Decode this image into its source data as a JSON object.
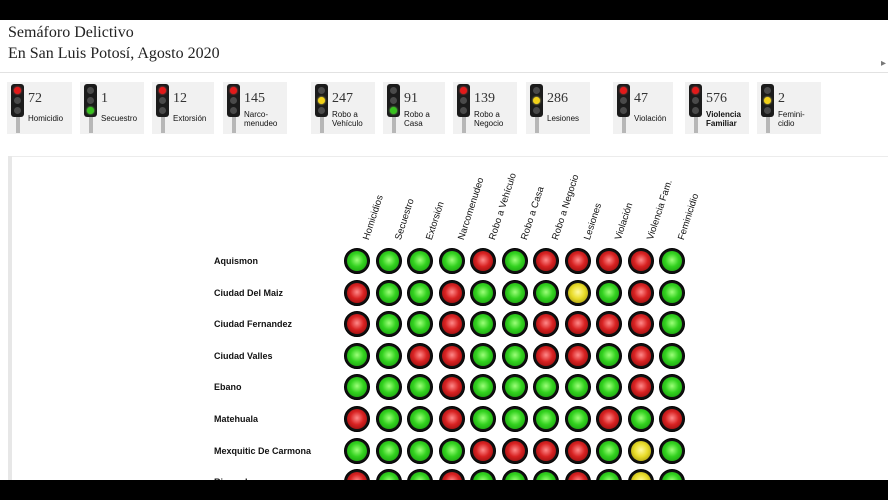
{
  "title": {
    "line1": "Semáforo Delictivo",
    "line2": "En San Luis Potosí, Agosto 2020"
  },
  "summary": [
    {
      "value": "72",
      "label": [
        "Homicidio"
      ],
      "light": "red",
      "bold": false
    },
    {
      "value": "1",
      "label": [
        "Secuestro"
      ],
      "light": "green",
      "bold": false
    },
    {
      "value": "12",
      "label": [
        "Extorsión"
      ],
      "light": "red",
      "bold": false
    },
    {
      "value": "145",
      "label": [
        "Narco-",
        "menudeo"
      ],
      "light": "red",
      "bold": false
    },
    {
      "value": "247",
      "label": [
        "Robo a",
        "Vehículo"
      ],
      "light": "yellow",
      "bold": false
    },
    {
      "value": "91",
      "label": [
        "Robo a",
        "Casa"
      ],
      "light": "green",
      "bold": false
    },
    {
      "value": "139",
      "label": [
        "Robo a",
        "Negocio"
      ],
      "light": "red",
      "bold": false
    },
    {
      "value": "286",
      "label": [
        "Lesiones"
      ],
      "light": "yellow",
      "bold": false
    },
    {
      "value": "47",
      "label": [
        "Violación"
      ],
      "light": "red",
      "bold": false
    },
    {
      "value": "576",
      "label": [
        "Violencia",
        "Familiar"
      ],
      "light": "red",
      "bold": true
    },
    {
      "value": "2",
      "label": [
        "Femini-",
        "cidio"
      ],
      "light": "yellow",
      "bold": false
    }
  ],
  "matrix": {
    "columns": [
      "Homicidios",
      "Secuestro",
      "Extorsión",
      "Narcomenudeo",
      "Robo a Vehículo",
      "Robo a Casa",
      "Robo a Negocio",
      "Lesiones",
      "Violación",
      "Violencia Fam.",
      "Feminicidio"
    ],
    "rows": [
      {
        "name": "Aquismon",
        "states": [
          "green",
          "green",
          "green",
          "green",
          "red",
          "green",
          "red",
          "red",
          "red",
          "red",
          "green"
        ]
      },
      {
        "name": "Ciudad Del Maiz",
        "states": [
          "red",
          "green",
          "green",
          "red",
          "green",
          "green",
          "green",
          "yellow",
          "green",
          "red",
          "green"
        ]
      },
      {
        "name": "Ciudad Fernandez",
        "states": [
          "red",
          "green",
          "green",
          "red",
          "green",
          "green",
          "red",
          "red",
          "red",
          "red",
          "green"
        ]
      },
      {
        "name": "Ciudad Valles",
        "states": [
          "green",
          "green",
          "red",
          "red",
          "green",
          "green",
          "red",
          "red",
          "green",
          "red",
          "green"
        ]
      },
      {
        "name": "Ebano",
        "states": [
          "green",
          "green",
          "green",
          "red",
          "green",
          "green",
          "green",
          "green",
          "green",
          "red",
          "green"
        ]
      },
      {
        "name": "Matehuala",
        "states": [
          "red",
          "green",
          "green",
          "red",
          "green",
          "green",
          "green",
          "green",
          "red",
          "green",
          "red"
        ]
      },
      {
        "name": "Mexquitic De Carmona",
        "states": [
          "green",
          "green",
          "green",
          "green",
          "red",
          "red",
          "red",
          "red",
          "green",
          "yellow",
          "green"
        ]
      },
      {
        "name": "Rioverde",
        "states": [
          "red",
          "green",
          "green",
          "red",
          "green",
          "green",
          "green",
          "red",
          "green",
          "yellow",
          "green"
        ]
      }
    ]
  }
}
